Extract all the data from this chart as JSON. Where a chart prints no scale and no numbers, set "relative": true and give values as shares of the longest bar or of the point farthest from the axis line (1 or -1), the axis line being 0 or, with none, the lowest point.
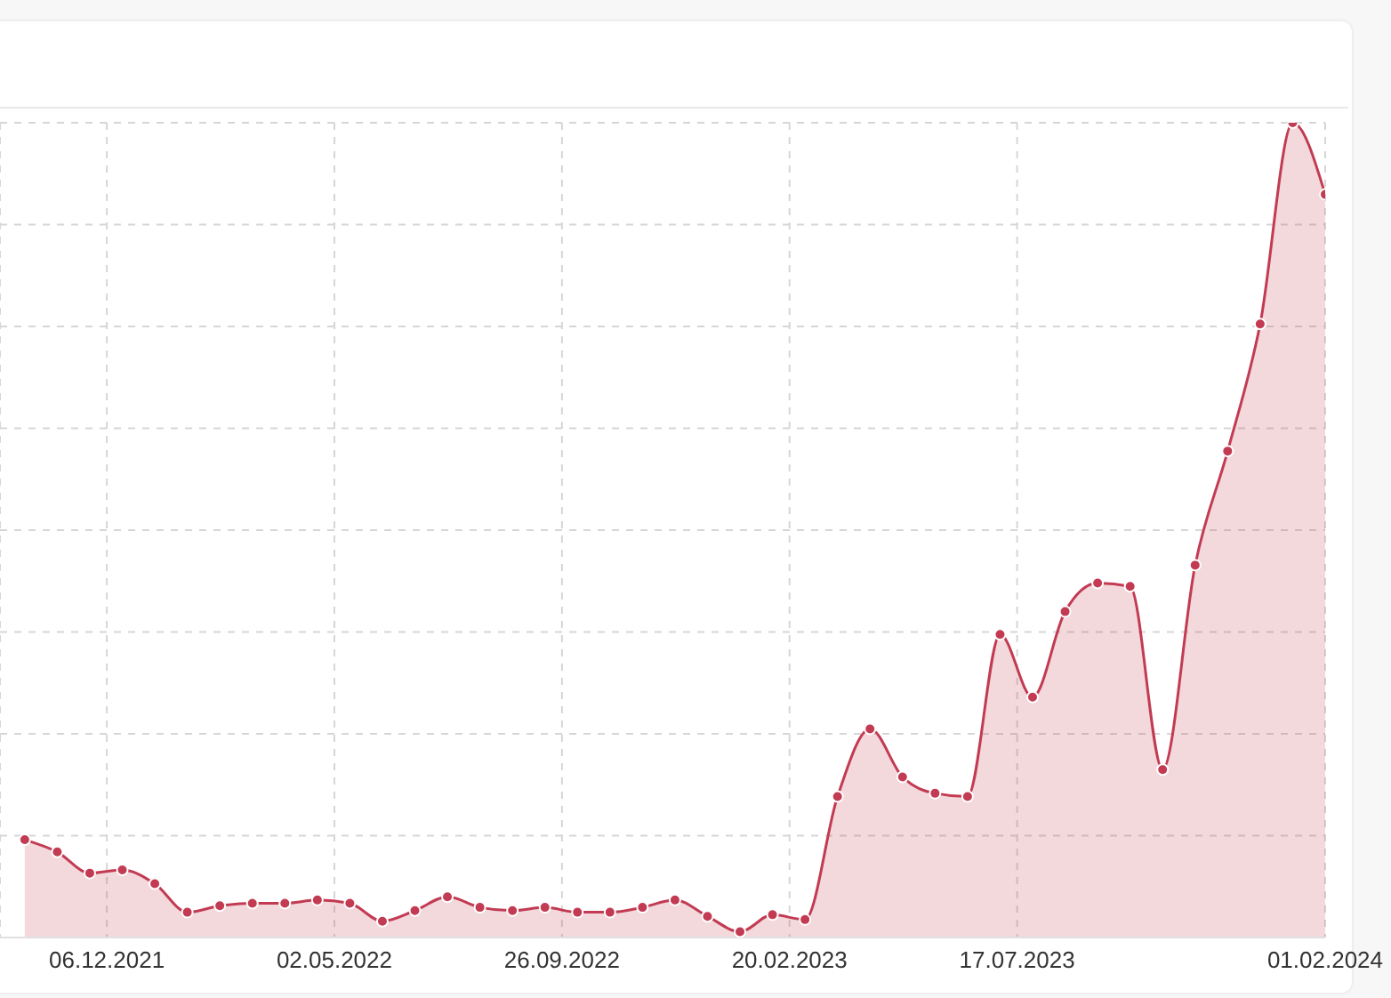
{
  "chart_data": {
    "type": "area",
    "relative": true,
    "x": [
      "2021-10-14",
      "2021-11-04",
      "2021-11-25",
      "2021-12-16",
      "2022-01-06",
      "2022-01-27",
      "2022-02-17",
      "2022-03-10",
      "2022-03-31",
      "2022-04-21",
      "2022-05-12",
      "2022-06-02",
      "2022-06-23",
      "2022-07-14",
      "2022-08-04",
      "2022-08-25",
      "2022-09-15",
      "2022-10-06",
      "2022-10-27",
      "2022-11-17",
      "2022-12-08",
      "2022-12-29",
      "2023-01-19",
      "2023-02-09",
      "2023-03-02",
      "2023-03-23",
      "2023-04-13",
      "2023-05-04",
      "2023-05-25",
      "2023-06-15",
      "2023-07-06",
      "2023-07-27",
      "2023-08-17",
      "2023-09-07",
      "2023-09-28",
      "2023-10-19",
      "2023-11-09",
      "2023-11-30",
      "2023-12-21",
      "2024-01-11",
      "2024-02-01"
    ],
    "series": [
      {
        "color": "#c23b52",
        "values": [
          0.12,
          0.105,
          0.079,
          0.083,
          0.066,
          0.031,
          0.039,
          0.042,
          0.042,
          0.046,
          0.042,
          0.02,
          0.033,
          0.05,
          0.037,
          0.033,
          0.037,
          0.031,
          0.031,
          0.037,
          0.046,
          0.026,
          0.007,
          0.028,
          0.022,
          0.173,
          0.256,
          0.197,
          0.177,
          0.173,
          0.372,
          0.295,
          0.4,
          0.435,
          0.431,
          0.206,
          0.457,
          0.597,
          0.753,
          1,
          0.912
        ]
      }
    ],
    "xlim": [
      "2021-09-28",
      "2024-02-01"
    ],
    "xticks": [
      {
        "value": "2021-12-06",
        "label": "06.12.2021"
      },
      {
        "value": "2022-05-02",
        "label": "02.05.2022"
      },
      {
        "value": "2022-09-26",
        "label": "26.09.2022"
      },
      {
        "value": "2023-02-20",
        "label": "20.02.2023"
      },
      {
        "value": "2023-07-17",
        "label": "17.07.2023"
      },
      {
        "value": "2024-02-01",
        "label": "01.02.2024"
      }
    ],
    "grid": true,
    "marker": "circle",
    "line_style": "solid",
    "legend": false
  }
}
